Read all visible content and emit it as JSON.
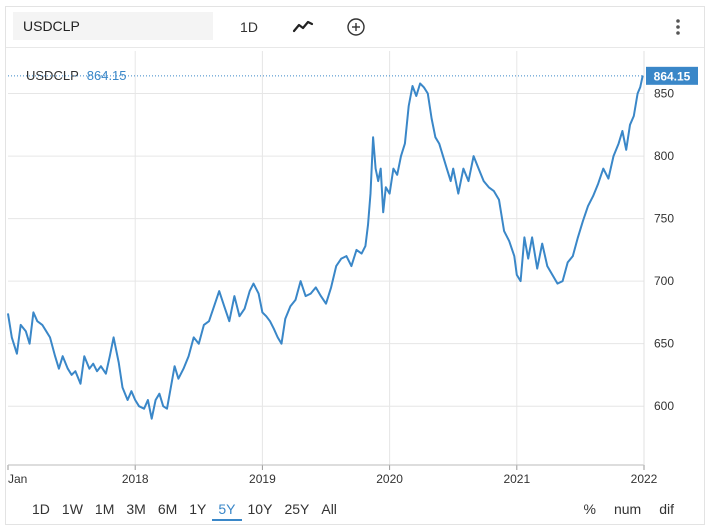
{
  "toolbar": {
    "symbol_value": "USDCLP",
    "interval_label": "1D",
    "charttype_icon": "line-chart-icon",
    "compare_icon": "plus-circle-icon",
    "menu_icon": "more-vertical-icon"
  },
  "legend": {
    "symbol": "USDCLP",
    "value": "864.15"
  },
  "last_price_label": "864.15",
  "colors": {
    "line": "#3a87c8",
    "accent": "#3a87c8",
    "grid": "#e6e6e6"
  },
  "ranges": [
    "1D",
    "1W",
    "1M",
    "3M",
    "6M",
    "1Y",
    "5Y",
    "10Y",
    "25Y",
    "All"
  ],
  "active_range": "5Y",
  "scale_buttons": [
    "%",
    "num",
    "dif"
  ],
  "chart_data": {
    "type": "line",
    "title": "USDCLP",
    "series": [
      {
        "name": "USDCLP",
        "points": [
          [
            2017.0,
            674
          ],
          [
            2017.03,
            655
          ],
          [
            2017.07,
            642
          ],
          [
            2017.1,
            665
          ],
          [
            2017.14,
            660
          ],
          [
            2017.17,
            650
          ],
          [
            2017.2,
            675
          ],
          [
            2017.23,
            668
          ],
          [
            2017.27,
            665
          ],
          [
            2017.3,
            660
          ],
          [
            2017.33,
            655
          ],
          [
            2017.37,
            640
          ],
          [
            2017.4,
            630
          ],
          [
            2017.43,
            640
          ],
          [
            2017.47,
            630
          ],
          [
            2017.5,
            625
          ],
          [
            2017.53,
            628
          ],
          [
            2017.57,
            618
          ],
          [
            2017.6,
            640
          ],
          [
            2017.64,
            630
          ],
          [
            2017.67,
            634
          ],
          [
            2017.7,
            628
          ],
          [
            2017.73,
            632
          ],
          [
            2017.77,
            626
          ],
          [
            2017.8,
            640
          ],
          [
            2017.83,
            655
          ],
          [
            2017.87,
            635
          ],
          [
            2017.9,
            615
          ],
          [
            2017.94,
            605
          ],
          [
            2017.97,
            612
          ],
          [
            2018.0,
            605
          ],
          [
            2018.03,
            600
          ],
          [
            2018.07,
            598
          ],
          [
            2018.1,
            605
          ],
          [
            2018.13,
            590
          ],
          [
            2018.16,
            605
          ],
          [
            2018.19,
            610
          ],
          [
            2018.22,
            600
          ],
          [
            2018.25,
            598
          ],
          [
            2018.28,
            615
          ],
          [
            2018.31,
            632
          ],
          [
            2018.34,
            622
          ],
          [
            2018.38,
            630
          ],
          [
            2018.42,
            640
          ],
          [
            2018.46,
            655
          ],
          [
            2018.5,
            650
          ],
          [
            2018.54,
            665
          ],
          [
            2018.58,
            668
          ],
          [
            2018.62,
            680
          ],
          [
            2018.66,
            692
          ],
          [
            2018.7,
            680
          ],
          [
            2018.74,
            668
          ],
          [
            2018.78,
            688
          ],
          [
            2018.82,
            672
          ],
          [
            2018.86,
            678
          ],
          [
            2018.9,
            692
          ],
          [
            2018.93,
            698
          ],
          [
            2018.97,
            690
          ],
          [
            2019.0,
            675
          ],
          [
            2019.03,
            672
          ],
          [
            2019.06,
            668
          ],
          [
            2019.09,
            662
          ],
          [
            2019.12,
            655
          ],
          [
            2019.15,
            650
          ],
          [
            2019.18,
            670
          ],
          [
            2019.22,
            680
          ],
          [
            2019.26,
            685
          ],
          [
            2019.3,
            700
          ],
          [
            2019.34,
            688
          ],
          [
            2019.38,
            690
          ],
          [
            2019.42,
            695
          ],
          [
            2019.46,
            688
          ],
          [
            2019.5,
            682
          ],
          [
            2019.54,
            695
          ],
          [
            2019.58,
            712
          ],
          [
            2019.62,
            718
          ],
          [
            2019.66,
            720
          ],
          [
            2019.7,
            712
          ],
          [
            2019.74,
            725
          ],
          [
            2019.78,
            722
          ],
          [
            2019.81,
            728
          ],
          [
            2019.83,
            745
          ],
          [
            2019.85,
            770
          ],
          [
            2019.87,
            815
          ],
          [
            2019.89,
            790
          ],
          [
            2019.91,
            780
          ],
          [
            2019.93,
            790
          ],
          [
            2019.95,
            755
          ],
          [
            2019.97,
            775
          ],
          [
            2020.0,
            770
          ],
          [
            2020.03,
            790
          ],
          [
            2020.06,
            785
          ],
          [
            2020.09,
            800
          ],
          [
            2020.12,
            810
          ],
          [
            2020.15,
            840
          ],
          [
            2020.18,
            856
          ],
          [
            2020.21,
            848
          ],
          [
            2020.24,
            858
          ],
          [
            2020.27,
            855
          ],
          [
            2020.3,
            850
          ],
          [
            2020.33,
            830
          ],
          [
            2020.36,
            815
          ],
          [
            2020.39,
            810
          ],
          [
            2020.42,
            800
          ],
          [
            2020.45,
            790
          ],
          [
            2020.48,
            780
          ],
          [
            2020.5,
            790
          ],
          [
            2020.54,
            770
          ],
          [
            2020.58,
            790
          ],
          [
            2020.62,
            780
          ],
          [
            2020.66,
            800
          ],
          [
            2020.7,
            790
          ],
          [
            2020.74,
            780
          ],
          [
            2020.78,
            775
          ],
          [
            2020.82,
            772
          ],
          [
            2020.86,
            765
          ],
          [
            2020.9,
            740
          ],
          [
            2020.94,
            732
          ],
          [
            2020.98,
            720
          ],
          [
            2021.0,
            705
          ],
          [
            2021.03,
            700
          ],
          [
            2021.06,
            735
          ],
          [
            2021.09,
            718
          ],
          [
            2021.12,
            735
          ],
          [
            2021.16,
            710
          ],
          [
            2021.2,
            730
          ],
          [
            2021.24,
            712
          ],
          [
            2021.28,
            705
          ],
          [
            2021.32,
            698
          ],
          [
            2021.36,
            700
          ],
          [
            2021.4,
            715
          ],
          [
            2021.44,
            720
          ],
          [
            2021.48,
            735
          ],
          [
            2021.52,
            748
          ],
          [
            2021.56,
            760
          ],
          [
            2021.6,
            768
          ],
          [
            2021.64,
            778
          ],
          [
            2021.68,
            790
          ],
          [
            2021.72,
            782
          ],
          [
            2021.76,
            800
          ],
          [
            2021.8,
            810
          ],
          [
            2021.83,
            820
          ],
          [
            2021.86,
            805
          ],
          [
            2021.89,
            825
          ],
          [
            2021.92,
            832
          ],
          [
            2021.95,
            850
          ],
          [
            2021.97,
            855
          ],
          [
            2021.99,
            864.15
          ]
        ]
      }
    ],
    "xlabel": "",
    "ylabel": "",
    "x_ticks": [
      {
        "value": 2017.0,
        "label": "Jan"
      },
      {
        "value": 2018.0,
        "label": "2018"
      },
      {
        "value": 2019.0,
        "label": "2019"
      },
      {
        "value": 2020.0,
        "label": "2020"
      },
      {
        "value": 2021.0,
        "label": "2021"
      },
      {
        "value": 2022.0,
        "label": "2022"
      }
    ],
    "y_ticks": [
      600,
      650,
      700,
      750,
      800,
      850
    ],
    "xlim": [
      2017.0,
      2022.0
    ],
    "ylim": [
      553,
      884
    ],
    "last_value": 864.15
  }
}
